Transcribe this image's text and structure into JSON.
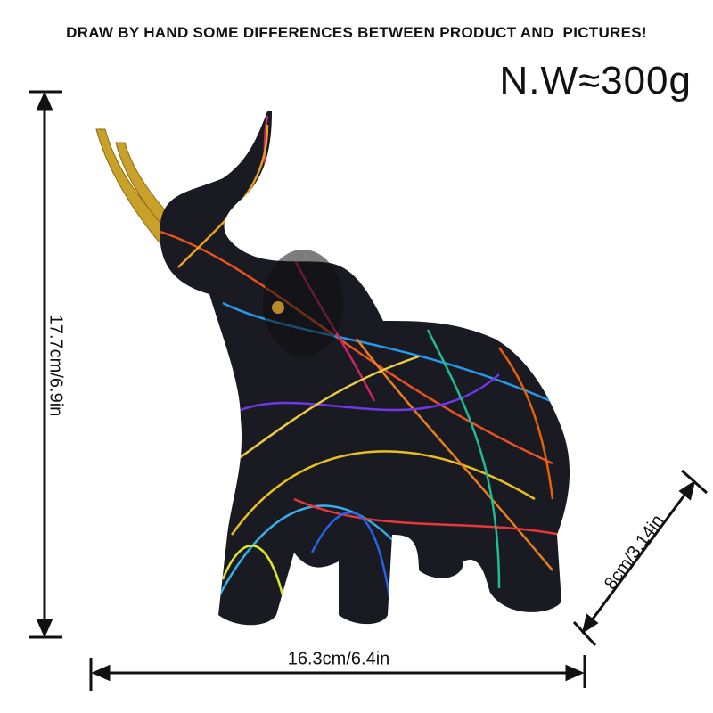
{
  "header": {
    "notice": "DRAW BY HAND SOME DIFFERENCES BETWEEN PRODUCT AND  PICTURES!",
    "weight": "N.W≈300g"
  },
  "dimensions": {
    "height": "17.7cm/6.9in",
    "width": "16.3cm/6.4in",
    "depth": "8cm/3.14in"
  }
}
